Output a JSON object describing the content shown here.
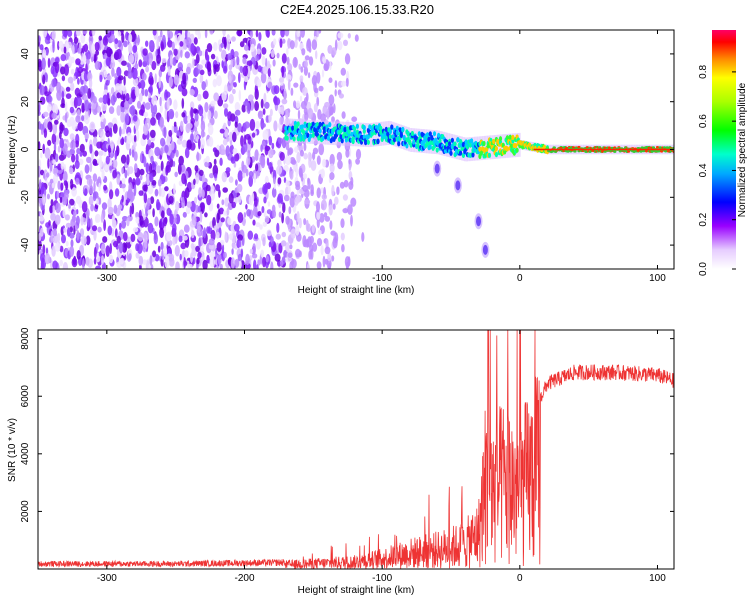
{
  "title": "C2E4.2025.106.15.33.R20",
  "chart_data": [
    {
      "type": "heatmap",
      "xlabel": "Height of straight line (km)",
      "ylabel": "Frequency (Hz)",
      "xlim": [
        -350,
        112
      ],
      "ylim": [
        -50,
        50
      ],
      "xticks": [
        -300,
        -200,
        -100,
        0,
        100
      ],
      "xtick_labels": [
        "-300",
        "-200",
        "-100",
        "0",
        "100"
      ],
      "yticks": [
        -40,
        -20,
        0,
        20,
        40
      ],
      "ytick_labels": [
        "-40",
        "-20",
        "0",
        "20",
        "40"
      ],
      "description_points": {
        "noise_region_x": [
          -350,
          -130
        ],
        "signal_track": [
          {
            "x": -170,
            "y": 8
          },
          {
            "x": -140,
            "y": 7
          },
          {
            "x": -110,
            "y": 6
          },
          {
            "x": -95,
            "y": 7
          },
          {
            "x": -80,
            "y": 4
          },
          {
            "x": -60,
            "y": 3
          },
          {
            "x": -40,
            "y": 0
          },
          {
            "x": -20,
            "y": 1
          },
          {
            "x": 0,
            "y": 2
          },
          {
            "x": 20,
            "y": 0
          },
          {
            "x": 112,
            "y": 0
          }
        ],
        "downward_tails": [
          {
            "x": -60,
            "y": -8
          },
          {
            "x": -45,
            "y": -15
          },
          {
            "x": -30,
            "y": -30
          },
          {
            "x": -25,
            "y": -42
          }
        ]
      },
      "colorbar": {
        "label": "Normalized spectral amplitude",
        "range": [
          0.0,
          0.97
        ],
        "ticks": [
          0.0,
          0.2,
          0.4,
          0.6,
          0.8
        ],
        "tick_labels": [
          "0.0",
          "0.2",
          "0.4",
          "0.6",
          "0.8"
        ]
      }
    },
    {
      "type": "line",
      "xlabel": "Height of straight line (km)",
      "ylabel": "SNR (10 * v/v)",
      "xlim": [
        -350,
        112
      ],
      "ylim": [
        0,
        8300
      ],
      "xticks": [
        -300,
        -200,
        -100,
        0,
        100
      ],
      "xtick_labels": [
        "-300",
        "-200",
        "-100",
        "0",
        "100"
      ],
      "yticks": [
        2000,
        4000,
        6000,
        8000
      ],
      "ytick_labels": [
        "2000",
        "4000",
        "6000",
        "8000"
      ],
      "series": [
        {
          "name": "SNR",
          "color": "#ee3333",
          "envelope": [
            {
              "x": -350,
              "y": 200
            },
            {
              "x": -250,
              "y": 200
            },
            {
              "x": -170,
              "y": 250
            },
            {
              "x": -120,
              "y": 400
            },
            {
              "x": -100,
              "y": 600
            },
            {
              "x": -80,
              "y": 900
            },
            {
              "x": -60,
              "y": 1100
            },
            {
              "x": -40,
              "y": 1400
            },
            {
              "x": -30,
              "y": 2000
            },
            {
              "x": -25,
              "y": 5000
            },
            {
              "x": -20,
              "y": 4500
            },
            {
              "x": -10,
              "y": 5000
            },
            {
              "x": 0,
              "y": 4500
            },
            {
              "x": 10,
              "y": 5500
            },
            {
              "x": 20,
              "y": 6500
            },
            {
              "x": 40,
              "y": 6900
            },
            {
              "x": 70,
              "y": 6900
            },
            {
              "x": 100,
              "y": 6800
            },
            {
              "x": 112,
              "y": 6600
            }
          ],
          "peak": {
            "x": -23,
            "y": 8300
          }
        }
      ]
    }
  ]
}
